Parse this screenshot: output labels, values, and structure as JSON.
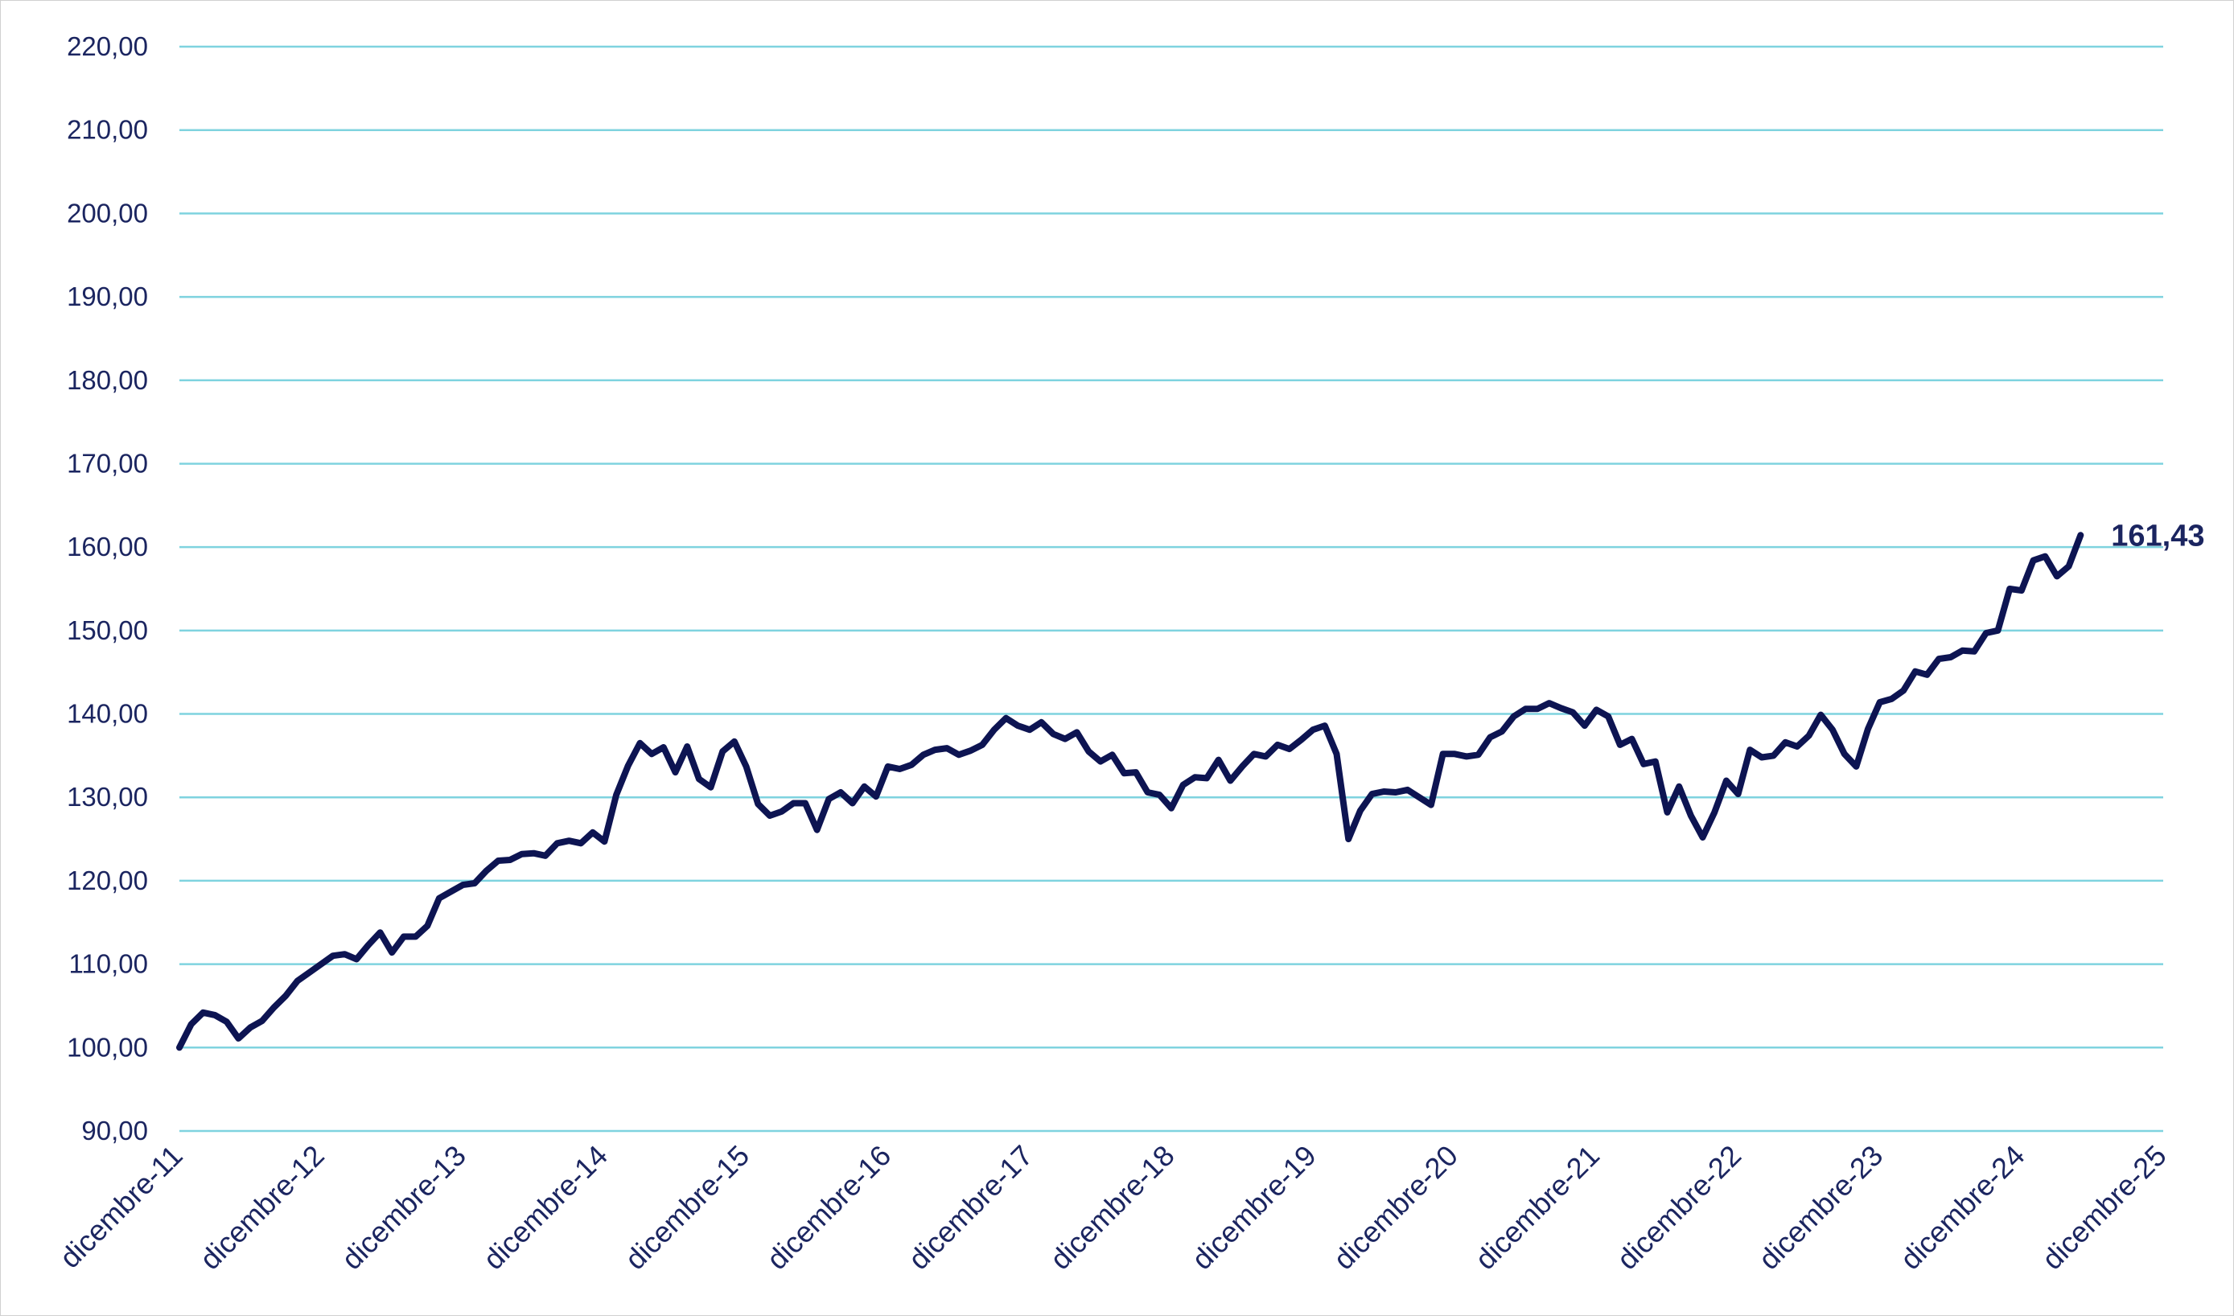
{
  "chart_data": {
    "type": "line",
    "title": "",
    "xlabel": "",
    "ylabel": "",
    "ylim": [
      90,
      220
    ],
    "y_ticks": [
      90,
      100,
      110,
      120,
      130,
      140,
      150,
      160,
      170,
      180,
      190,
      200,
      210,
      220
    ],
    "y_tick_labels": [
      "90,00",
      "100,00",
      "110,00",
      "120,00",
      "130,00",
      "140,00",
      "150,00",
      "160,00",
      "170,00",
      "180,00",
      "190,00",
      "200,00",
      "210,00",
      "220,00"
    ],
    "x_tick_labels": [
      "dicembre-11",
      "dicembre-12",
      "dicembre-13",
      "dicembre-14",
      "dicembre-15",
      "dicembre-16",
      "dicembre-17",
      "dicembre-18",
      "dicembre-19",
      "dicembre-20",
      "dicembre-21",
      "dicembre-22",
      "dicembre-23",
      "dicembre-24",
      "dicembre-25"
    ],
    "x_start": "2011-12",
    "grid": true,
    "legend": "none",
    "end_label": "161,43",
    "colors": {
      "line": "#0d1452",
      "grid": "#7fd3df",
      "text": "#1b2560"
    },
    "series": [
      {
        "values": [
          100.0,
          102.8,
          104.2,
          103.9,
          103.1,
          101.1,
          102.4,
          103.2,
          104.8,
          106.2,
          108.0,
          109.0,
          110.0,
          111.0,
          111.2,
          110.6,
          112.3,
          113.8,
          111.4,
          113.3,
          113.3,
          114.6,
          117.9,
          118.7,
          119.5,
          119.7,
          121.2,
          122.4,
          122.5,
          123.2,
          123.3,
          123.0,
          124.5,
          124.8,
          124.5,
          125.8,
          124.7,
          130.3,
          133.8,
          136.5,
          135.2,
          136.0,
          133.0,
          136.1,
          132.2,
          131.2,
          135.5,
          136.7,
          133.7,
          129.2,
          127.8,
          128.3,
          129.3,
          129.3,
          126.1,
          129.8,
          130.6,
          129.3,
          131.3,
          130.1,
          133.7,
          133.4,
          133.9,
          135.1,
          135.7,
          135.9,
          135.1,
          135.6,
          136.3,
          138.1,
          139.5,
          138.6,
          138.1,
          139.0,
          137.6,
          137.0,
          137.8,
          135.5,
          134.3,
          135.1,
          132.9,
          133.0,
          130.6,
          130.3,
          128.7,
          131.5,
          132.4,
          132.3,
          134.5,
          132.0,
          133.7,
          135.2,
          134.9,
          136.3,
          135.8,
          136.9,
          138.1,
          138.6,
          135.2,
          125.0,
          128.4,
          130.4,
          130.7,
          130.6,
          130.9,
          130.0,
          129.1,
          135.2,
          135.2,
          134.9,
          135.1,
          137.2,
          137.9,
          139.7,
          140.6,
          140.6,
          141.3,
          140.7,
          140.2,
          138.6,
          140.5,
          139.7,
          136.3,
          137.0,
          134.0,
          134.3,
          128.2,
          131.3,
          127.8,
          125.2,
          128.2,
          132.0,
          130.4,
          135.7,
          134.8,
          135.0,
          136.6,
          136.1,
          137.4,
          139.9,
          138.1,
          135.2,
          133.7,
          138.2,
          141.4,
          141.8,
          142.8,
          145.1,
          144.7,
          146.6,
          146.8,
          147.6,
          147.5,
          149.7,
          150.0,
          155.0,
          154.8,
          158.4,
          158.9,
          156.5,
          157.7,
          161.43
        ]
      }
    ]
  }
}
